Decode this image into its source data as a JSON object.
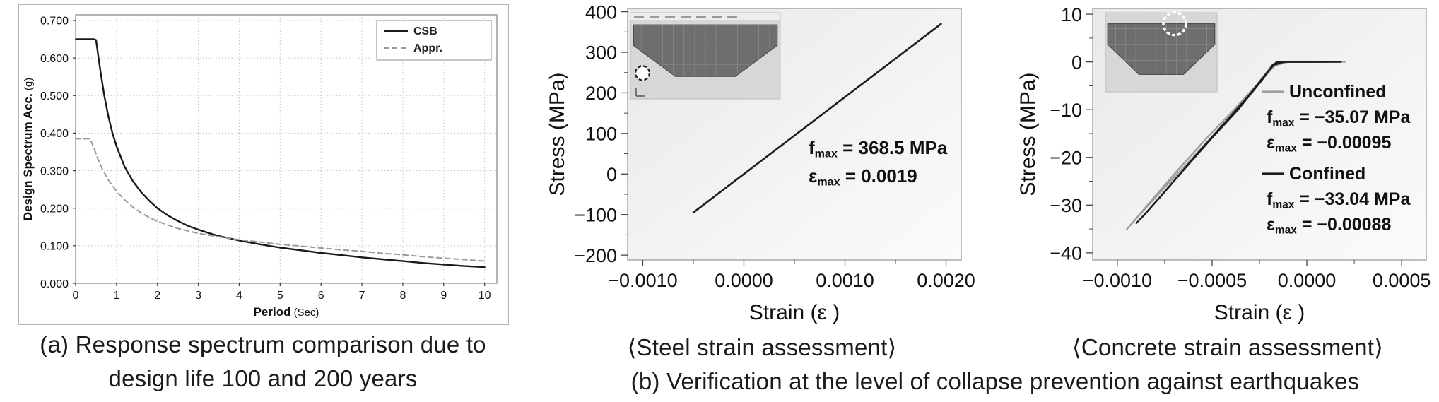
{
  "figure": {
    "caption_a_line1": "(a) Response spectrum comparison due to",
    "caption_a_line2": "design life 100 and 200 years",
    "caption_steel": "⟨Steel strain assessment⟩",
    "caption_concrete": "⟨Concrete strain assessment⟩",
    "caption_b": "(b) Verification at the level of collapse prevention against earthquakes"
  },
  "colors": {
    "csb_line": "#1a1a1a",
    "appr_line": "#9a9a9a",
    "steel_line": "#1c1c1c",
    "unconfined_line": "#9e9e9e",
    "confined_line": "#1c1c1c"
  },
  "chart_data": [
    {
      "id": "response-spectrum",
      "type": "line",
      "title": "",
      "xlabel": "Period",
      "xlabel_unit": "(Sec)",
      "ylabel": "Design Spectrum Acc.",
      "ylabel_unit": "(g)",
      "xlim": [
        0,
        10.3
      ],
      "ylim": [
        0,
        0.715
      ],
      "xticks": [
        0,
        1,
        2,
        3,
        4,
        5,
        6,
        7,
        8,
        9,
        10
      ],
      "xtick_labels": [
        "0",
        "1",
        "2",
        "3",
        "4",
        "5",
        "6",
        "7",
        "8",
        "9",
        "10"
      ],
      "yticks": [
        0,
        0.1,
        0.2,
        0.3,
        0.4,
        0.5,
        0.6,
        0.7
      ],
      "ytick_labels": [
        "0.000",
        "0.100",
        "0.200",
        "0.300",
        "0.400",
        "0.500",
        "0.600",
        "0.700"
      ],
      "grid": true,
      "legend": {
        "position": "top-right",
        "entries": [
          {
            "label": "CSB",
            "color": "#1a1a1a",
            "dash": ""
          },
          {
            "label": "Appr.",
            "color": "#9a9a9a",
            "dash": "7 5"
          }
        ]
      },
      "series": [
        {
          "name": "CSB",
          "color": "#1a1a1a",
          "width": 2.4,
          "dash": "",
          "points": [
            [
              0,
              0.65
            ],
            [
              0.45,
              0.65
            ],
            [
              0.5,
              0.648
            ],
            [
              0.6,
              0.57
            ],
            [
              0.7,
              0.5
            ],
            [
              0.8,
              0.445
            ],
            [
              0.9,
              0.4
            ],
            [
              1.0,
              0.365
            ],
            [
              1.2,
              0.31
            ],
            [
              1.4,
              0.272
            ],
            [
              1.6,
              0.243
            ],
            [
              1.8,
              0.22
            ],
            [
              2.0,
              0.2
            ],
            [
              2.25,
              0.181
            ],
            [
              2.5,
              0.166
            ],
            [
              2.75,
              0.153
            ],
            [
              3.0,
              0.143
            ],
            [
              3.25,
              0.134
            ],
            [
              3.5,
              0.126
            ],
            [
              3.75,
              0.12
            ],
            [
              4.0,
              0.114
            ],
            [
              4.5,
              0.104
            ],
            [
              5.0,
              0.095
            ],
            [
              5.5,
              0.088
            ],
            [
              6.0,
              0.081
            ],
            [
              6.5,
              0.075
            ],
            [
              7.0,
              0.069
            ],
            [
              7.5,
              0.064
            ],
            [
              8.0,
              0.059
            ],
            [
              8.5,
              0.054
            ],
            [
              9.0,
              0.05
            ],
            [
              9.5,
              0.046
            ],
            [
              10.0,
              0.043
            ]
          ]
        },
        {
          "name": "Appr.",
          "color": "#9a9a9a",
          "width": 2.0,
          "dash": "7 5",
          "points": [
            [
              0,
              0.385
            ],
            [
              0.35,
              0.385
            ],
            [
              0.45,
              0.36
            ],
            [
              0.55,
              0.33
            ],
            [
              0.65,
              0.305
            ],
            [
              0.8,
              0.275
            ],
            [
              1.0,
              0.245
            ],
            [
              1.2,
              0.222
            ],
            [
              1.4,
              0.203
            ],
            [
              1.6,
              0.188
            ],
            [
              1.8,
              0.175
            ],
            [
              2.0,
              0.165
            ],
            [
              2.5,
              0.146
            ],
            [
              3.0,
              0.133
            ],
            [
              3.5,
              0.124
            ],
            [
              4.0,
              0.116
            ],
            [
              4.5,
              0.11
            ],
            [
              5.0,
              0.104
            ],
            [
              5.5,
              0.099
            ],
            [
              6.0,
              0.094
            ],
            [
              6.5,
              0.089
            ],
            [
              7.0,
              0.085
            ],
            [
              7.5,
              0.08
            ],
            [
              8.0,
              0.076
            ],
            [
              8.5,
              0.071
            ],
            [
              9.0,
              0.067
            ],
            [
              9.5,
              0.063
            ],
            [
              10.0,
              0.059
            ]
          ]
        }
      ]
    },
    {
      "id": "steel-strain",
      "type": "line",
      "title": "",
      "xlabel": "Strain (ε )",
      "ylabel": "Stress (MPa)",
      "xlim": [
        -0.00115,
        0.00215
      ],
      "ylim": [
        -212,
        408
      ],
      "xticks": [
        -0.001,
        0,
        0.001,
        0.002
      ],
      "xtick_labels": [
        "−0.0010",
        "0.0000",
        "0.0010",
        "0.0020"
      ],
      "yticks": [
        -200,
        -100,
        0,
        100,
        200,
        300,
        400
      ],
      "ytick_labels": [
        "−200",
        "−100",
        "0",
        "100",
        "200",
        "300",
        "400"
      ],
      "grid": false,
      "annotation": {
        "lines": [
          {
            "sym": "f",
            "sub": "max",
            "rest": " = 368.5 MPa"
          },
          {
            "sym": "ε",
            "sub": "max",
            "rest": " = 0.0019"
          }
        ]
      },
      "inset": {
        "name": "fe-model-cross-section-inset",
        "marker": "steel-fiber-location-circle",
        "toolbar": true,
        "circle_style": "dark-dashed"
      },
      "series": [
        {
          "name": "steel",
          "color": "#1c1c1c",
          "width": 2.6,
          "dash": "",
          "points": [
            [
              -0.0005,
              -95
            ],
            [
              0.00195,
              370
            ]
          ]
        }
      ]
    },
    {
      "id": "concrete-strain",
      "type": "line",
      "title": "",
      "xlabel": "Strain (ε )",
      "ylabel": "Stress (MPa)",
      "xlim": [
        -0.00113,
        0.00063
      ],
      "ylim": [
        -41.5,
        11.2
      ],
      "xticks": [
        -0.001,
        -0.0005,
        0,
        0.0005
      ],
      "xtick_labels": [
        "−0.0010",
        "−0.0005",
        "0.0000",
        "0.0005"
      ],
      "yticks": [
        -40,
        -30,
        -20,
        -10,
        0,
        10
      ],
      "ytick_labels": [
        "−40",
        "−30",
        "−20",
        "−10",
        "0",
        "10"
      ],
      "grid": false,
      "legend_block": {
        "entries": [
          {
            "label": "Unconfined",
            "color": "#9e9e9e"
          },
          {
            "sym": "f",
            "sub": "max",
            "rest": " = −35.07 MPa"
          },
          {
            "sym": "ε",
            "sub": "max",
            "rest": " = −0.00095"
          },
          {
            "label": "Confined",
            "color": "#1c1c1c"
          },
          {
            "sym": "f",
            "sub": "max",
            "rest": " = −33.04 MPa"
          },
          {
            "sym": "ε",
            "sub": "max",
            "rest": " = −0.00088"
          }
        ]
      },
      "inset": {
        "name": "fe-model-cross-section-inset",
        "marker": "concrete-fiber-location-circle",
        "toolbar": false,
        "circle_style": "white-dashed"
      },
      "series": [
        {
          "name": "Unconfined-1",
          "color": "#9e9e9e",
          "width": 2.2,
          "dash": "",
          "points": [
            [
              -0.00095,
              -35.07
            ],
            [
              -0.00084,
              -30.2
            ],
            [
              -0.0007,
              -24.2
            ],
            [
              -0.00056,
              -18.2
            ],
            [
              -0.00042,
              -12.2
            ],
            [
              -0.0003,
              -7.0
            ],
            [
              -0.00021,
              -2.5
            ],
            [
              -0.00016,
              0
            ],
            [
              0.00018,
              0
            ]
          ]
        },
        {
          "name": "Unconfined-2",
          "color": "#9e9e9e",
          "width": 2.2,
          "dash": "",
          "points": [
            [
              -0.00093,
              -34.2
            ],
            [
              -0.0008,
              -28.2
            ],
            [
              -0.00066,
              -21.8
            ],
            [
              -0.00052,
              -15.6
            ],
            [
              -0.00038,
              -9.8
            ],
            [
              -0.00026,
              -4.6
            ],
            [
              -0.00018,
              -0.5
            ],
            [
              -0.00015,
              0
            ]
          ]
        },
        {
          "name": "Unconfined-3",
          "color": "#9e9e9e",
          "width": 2.2,
          "dash": "",
          "points": [
            [
              -0.00095,
              -35.07
            ],
            [
              -0.00082,
              -29.0
            ],
            [
              -0.00068,
              -22.6
            ],
            [
              -0.00053,
              -16.0
            ],
            [
              -0.00039,
              -10.3
            ],
            [
              -0.00027,
              -5.2
            ],
            [
              -0.00017,
              -0.8
            ],
            [
              -0.0001,
              0
            ],
            [
              0.0002,
              0
            ]
          ]
        },
        {
          "name": "Confined-1",
          "color": "#1c1c1c",
          "width": 2.2,
          "dash": "",
          "points": [
            [
              -0.00088,
              -33.04
            ],
            [
              -0.00076,
              -27.6
            ],
            [
              -0.00062,
              -21.2
            ],
            [
              -0.00048,
              -14.9
            ],
            [
              -0.00035,
              -9.2
            ],
            [
              -0.00024,
              -4.0
            ],
            [
              -0.00018,
              -0.6
            ],
            [
              -0.00015,
              0
            ],
            [
              0.00018,
              0
            ]
          ]
        },
        {
          "name": "Confined-2",
          "color": "#1c1c1c",
          "width": 2.2,
          "dash": "",
          "points": [
            [
              -0.00086,
              -32.2
            ],
            [
              -0.00072,
              -25.8
            ],
            [
              -0.00058,
              -19.3
            ],
            [
              -0.00044,
              -13.0
            ],
            [
              -0.00031,
              -7.2
            ],
            [
              -0.00021,
              -2.2
            ],
            [
              -0.00016,
              0
            ]
          ]
        },
        {
          "name": "Confined-3",
          "color": "#1c1c1c",
          "width": 2.2,
          "dash": "",
          "points": [
            [
              -0.0009,
              -33.8
            ],
            [
              -0.00078,
              -28.6
            ],
            [
              -0.00064,
              -22.2
            ],
            [
              -0.0005,
              -15.9
            ],
            [
              -0.00036,
              -9.9
            ],
            [
              -0.00025,
              -4.4
            ],
            [
              -0.00018,
              -0.7
            ],
            [
              -0.00012,
              0
            ],
            [
              0.0001,
              0
            ]
          ]
        }
      ]
    }
  ]
}
